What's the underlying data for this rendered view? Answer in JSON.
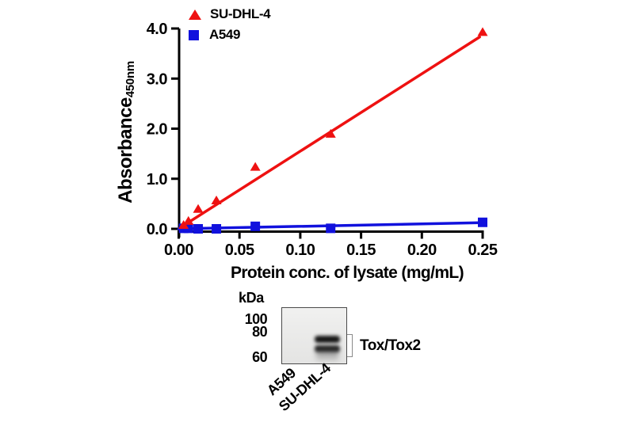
{
  "chart_data": {
    "type": "scatter",
    "title": "",
    "xlabel": "Protein conc. of lysate (mg/mL)",
    "ylabel": "Absorbance",
    "ylabel_subscript": "450nm",
    "xlim": [
      0,
      0.25
    ],
    "ylim": [
      0,
      4.0
    ],
    "grid": false,
    "legend_position": "above-top-left",
    "axis_color": "#000000",
    "x_ticks": [
      0.0,
      0.05,
      0.1,
      0.15,
      0.2,
      0.25
    ],
    "x_tick_labels": [
      "0.00",
      "0.05",
      "0.10",
      "0.15",
      "0.20",
      "0.25"
    ],
    "y_ticks": [
      0.0,
      1.0,
      2.0,
      3.0,
      4.0
    ],
    "y_tick_labels": [
      "0.0",
      "1.0",
      "2.0",
      "3.0",
      "4.0"
    ],
    "series": [
      {
        "name": "SU-DHL-4",
        "marker": "triangle",
        "color": "#ee1111",
        "x": [
          0.004,
          0.008,
          0.016,
          0.031,
          0.063,
          0.125,
          0.25
        ],
        "y": [
          0.08,
          0.16,
          0.4,
          0.57,
          1.24,
          1.9,
          3.93
        ],
        "trend": {
          "x": [
            0.001,
            0.2475
          ],
          "y": [
            0.02,
            3.83
          ]
        }
      },
      {
        "name": "A549",
        "marker": "square",
        "color": "#1111dd",
        "x": [
          0.004,
          0.008,
          0.016,
          0.031,
          0.063,
          0.125,
          0.25
        ],
        "y": [
          0.01,
          0.01,
          0.0,
          0.0,
          0.05,
          0.01,
          0.13
        ],
        "trend": {
          "x": [
            0.0,
            0.252
          ],
          "y": [
            0.0,
            0.125
          ]
        }
      }
    ]
  },
  "blot": {
    "kda_label": "kDa",
    "marker_labels": [
      "100",
      "80",
      "60"
    ],
    "lane_labels": [
      "A549",
      "SU-DHL-4"
    ],
    "band_label": "Tox/Tox2"
  }
}
